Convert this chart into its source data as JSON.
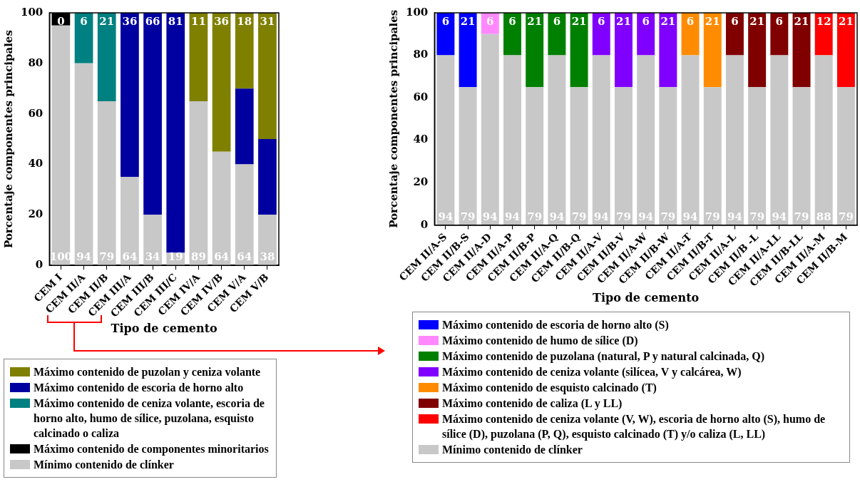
{
  "chart_data": [
    {
      "type": "bar",
      "stacked": true,
      "xlabel": "Tipo de cemento",
      "ylabel": "Porcentaje componentes principales",
      "categories": [
        "CEM I",
        "CEM II/A",
        "CEM II/B",
        "CEM III/A",
        "CEM III/B",
        "CEM III/C",
        "CEM IV/A",
        "CEM IV/B",
        "CEM V/A",
        "CEM V/B"
      ],
      "ylim": [
        0,
        100
      ],
      "yticks": [
        0,
        20,
        40,
        60,
        80,
        100
      ],
      "grid": false,
      "legend": "bottom",
      "series": [
        {
          "name": "Mínimo contenido de clínker",
          "color": "#c8c8c8",
          "values": [
            95,
            80,
            65,
            35,
            20,
            5,
            65,
            45,
            40,
            20
          ]
        },
        {
          "name": "Máximo contenido de componentes minoritarios",
          "color": "#000000",
          "values": [
            5,
            null,
            null,
            null,
            null,
            null,
            null,
            null,
            null,
            null
          ]
        },
        {
          "name": "Máximo contenido de ceniza volante, escoria de horno alto, humo de sílice, puzolana, esquisto calcinado o caliza",
          "color": "#008080",
          "values": [
            null,
            20,
            35,
            null,
            null,
            null,
            null,
            null,
            null,
            null
          ]
        },
        {
          "name": "Máximo contenido de escoria de horno alto",
          "color": "#0000a0",
          "values": [
            null,
            null,
            null,
            65,
            80,
            95,
            null,
            null,
            30,
            30
          ]
        },
        {
          "name": "Máximo contenido de puzolan y ceniza volante",
          "color": "#808000",
          "values": [
            null,
            null,
            null,
            null,
            null,
            null,
            35,
            55,
            30,
            50
          ]
        }
      ],
      "annotations": [
        "0",
        "100",
        "6",
        "94",
        "21",
        "79",
        "36",
        "64",
        "66",
        "34",
        "81",
        "19",
        "11",
        "89",
        "36",
        "64",
        "18",
        "64",
        "31",
        "38"
      ]
    },
    {
      "type": "bar",
      "stacked": true,
      "xlabel": "Tipo de cemento",
      "ylabel": "Porcentaje componentes principales",
      "categories": [
        "CEM II/A-S",
        "CEM II/B-S",
        "CEM II/A-D",
        "CEM II/A-P",
        "CEM II/B-P",
        "CEM II/A-Q",
        "CEM II/B-Q",
        "CEM II/A-V",
        "CEM II/B-V",
        "CEM II/A-W",
        "CEM II/B-W",
        "CEM II/A-T",
        "CEM II/B-T",
        "CEM II/A-L",
        "CEM II/B -L",
        "CEM II/A-LL",
        "CEM II/B-LL",
        "CEM II/A-M",
        "CEM II/B-M"
      ],
      "ylim": [
        0,
        100
      ],
      "yticks": [
        0,
        20,
        40,
        60,
        80,
        100
      ],
      "grid": false,
      "legend": "bottom",
      "series": [
        {
          "name": "Mínimo contenido de clínker",
          "color": "#c8c8c8",
          "values": [
            80,
            65,
            90,
            80,
            65,
            80,
            65,
            80,
            65,
            80,
            65,
            80,
            65,
            80,
            65,
            80,
            65,
            80,
            65
          ]
        },
        {
          "name": "Máximo contenido de ceniza volante (V, W), escoria de horno alto (S), humo de sílice (D), puzolana (P, Q), esquisto calcinado (T) y/o caliza (L, LL)",
          "color": "#ff0000",
          "values": [
            null,
            null,
            null,
            null,
            null,
            null,
            null,
            null,
            null,
            null,
            null,
            null,
            null,
            null,
            null,
            null,
            null,
            20,
            35
          ]
        },
        {
          "name": "Máximo contenido de caliza (L y LL)",
          "color": "#800000",
          "values": [
            null,
            null,
            null,
            null,
            null,
            null,
            null,
            null,
            null,
            null,
            null,
            null,
            null,
            20,
            35,
            20,
            35,
            null,
            null
          ]
        },
        {
          "name": "Máximo contenido de  esquisto calcinado (T)",
          "color": "#ff8c00",
          "values": [
            null,
            null,
            null,
            null,
            null,
            null,
            null,
            null,
            null,
            null,
            null,
            20,
            35,
            null,
            null,
            null,
            null,
            null,
            null
          ]
        },
        {
          "name": "Máximo contenido de ceniza volante (silícea, V y calcárea, W)",
          "color": "#8000ff",
          "values": [
            null,
            null,
            null,
            null,
            null,
            null,
            null,
            20,
            35,
            20,
            35,
            null,
            null,
            null,
            null,
            null,
            null,
            null,
            null
          ]
        },
        {
          "name": "Máximo contenido de puzolana (natural, P y natural calcinada, Q)",
          "color": "#008000",
          "values": [
            null,
            null,
            null,
            20,
            35,
            20,
            35,
            null,
            null,
            null,
            null,
            null,
            null,
            null,
            null,
            null,
            null,
            null,
            null
          ]
        },
        {
          "name": "Máximo contenido de humo de sílice (D)",
          "color": "#ff88ff",
          "values": [
            null,
            null,
            10,
            null,
            null,
            null,
            null,
            null,
            null,
            null,
            null,
            null,
            null,
            null,
            null,
            null,
            null,
            null,
            null
          ]
        },
        {
          "name": "Máximo contenido de escoria de horno alto (S)",
          "color": "#0000ff",
          "values": [
            20,
            35,
            null,
            null,
            null,
            null,
            null,
            null,
            null,
            null,
            null,
            null,
            null,
            null,
            null,
            null,
            null,
            null,
            null
          ]
        }
      ],
      "annotations": [
        "6",
        "94",
        "21",
        "79",
        "6",
        "94",
        "6",
        "94",
        "21",
        "79",
        "6",
        "94",
        "21",
        "79",
        "6",
        "94",
        "21",
        "79",
        "6",
        "94",
        "21",
        "79",
        "6",
        "94",
        "21",
        "79",
        "6",
        "94",
        "21",
        "79",
        "6",
        "94",
        "21",
        "79",
        "12",
        "88",
        "21",
        "79"
      ]
    }
  ]
}
